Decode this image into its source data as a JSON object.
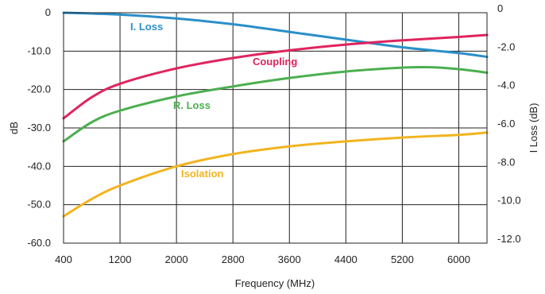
{
  "chart_data": {
    "type": "line",
    "xlabel": "Frequency (MHz)",
    "ylabel_left": "dB",
    "ylabel_right": "I Loss (dB)",
    "xlim": [
      400,
      6400
    ],
    "ylim_left": [
      -60,
      0
    ],
    "ylim_right": [
      -12,
      0
    ],
    "x_ticks": [
      400,
      1200,
      2000,
      2800,
      3600,
      4400,
      5200,
      6000
    ],
    "x_tick_labels": [
      "400",
      "1200",
      "2000",
      "2800",
      "3600",
      "4400",
      "5200",
      "6000"
    ],
    "y_left_ticks": [
      0,
      -10,
      -20,
      -30,
      -40,
      -50,
      -60
    ],
    "y_left_tick_labels": [
      "0",
      "-10.0",
      "-20.0",
      "-30.0",
      "-40.0",
      "-50.0",
      "-60.0"
    ],
    "y_right_ticks": [
      0,
      -2,
      -4,
      -6,
      -8,
      -10,
      -12
    ],
    "y_right_tick_labels": [
      "0",
      "-2.0",
      "-4.0",
      "-6.0",
      "-8.0",
      "-10.0",
      "-12.0"
    ],
    "grid": true,
    "series": [
      {
        "name": "I. Loss",
        "axis": "right",
        "color": "#2a8fc8",
        "x": [
          400,
          1200,
          2000,
          2800,
          3600,
          4400,
          5200,
          6000,
          6400
        ],
        "y": [
          0,
          -0.1,
          -0.3,
          -0.6,
          -1.0,
          -1.4,
          -1.8,
          -2.1,
          -2.3
        ]
      },
      {
        "name": "Coupling",
        "axis": "left",
        "color": "#e0245e",
        "x": [
          400,
          800,
          1200,
          2000,
          2800,
          3600,
          4400,
          5200,
          6000,
          6400
        ],
        "y": [
          -27.5,
          -22.0,
          -18.5,
          -14.5,
          -11.8,
          -9.8,
          -8.3,
          -7.2,
          -6.3,
          -5.8
        ]
      },
      {
        "name": "R. Loss",
        "axis": "left",
        "color": "#4caf50",
        "x": [
          400,
          800,
          1200,
          2000,
          2800,
          3600,
          4400,
          5200,
          5600,
          6000,
          6400
        ],
        "y": [
          -33.5,
          -28.5,
          -25.5,
          -21.8,
          -19.2,
          -17.0,
          -15.3,
          -14.3,
          -14.2,
          -14.7,
          -15.6
        ]
      },
      {
        "name": "Isolation",
        "axis": "left",
        "color": "#f2b41f",
        "x": [
          400,
          800,
          1200,
          2000,
          2800,
          3600,
          4400,
          5200,
          6000,
          6400
        ],
        "y": [
          -53.0,
          -48.5,
          -45.0,
          -40.0,
          -36.8,
          -34.8,
          -33.5,
          -32.5,
          -31.8,
          -31.2
        ]
      }
    ]
  }
}
